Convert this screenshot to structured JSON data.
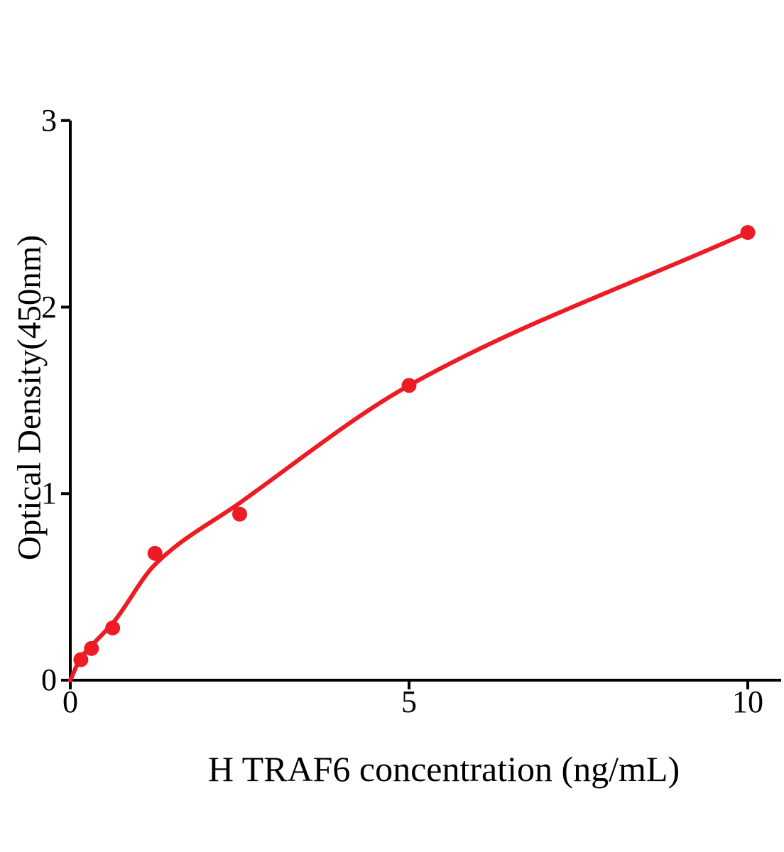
{
  "chart_data": {
    "type": "scatter",
    "title": "",
    "xlabel": "H TRAF6 concentration (ng/mL)",
    "ylabel": "Optical Density(450nm)",
    "xlim": [
      0,
      10.5
    ],
    "ylim": [
      0,
      3
    ],
    "grid": false,
    "legend": false,
    "x_ticks": [
      {
        "value": 0,
        "label": "0"
      },
      {
        "value": 5,
        "label": "5"
      },
      {
        "value": 10,
        "label": "10"
      }
    ],
    "y_ticks": [
      {
        "value": 0,
        "label": "0"
      },
      {
        "value": 1,
        "label": "1"
      },
      {
        "value": 2,
        "label": "2"
      },
      {
        "value": 3,
        "label": "3"
      }
    ],
    "series": [
      {
        "marker": "circle",
        "color": "#ed1c24",
        "x": [
          0.156,
          0.3125,
          0.625,
          1.25,
          2.5,
          5,
          10
        ],
        "y": [
          0.11,
          0.17,
          0.28,
          0.68,
          0.89,
          1.58,
          2.4
        ]
      }
    ],
    "fit_curve": {
      "color": "#ed1c24",
      "x": [
        0,
        0.156,
        0.3125,
        0.625,
        1.25,
        2.5,
        5,
        10
      ],
      "y": [
        0,
        0.12,
        0.185,
        0.305,
        0.62,
        0.95,
        1.58,
        2.4
      ]
    },
    "colors": {
      "axis": "#000000",
      "background": "#ffffff",
      "series": "#ed1c24"
    }
  }
}
